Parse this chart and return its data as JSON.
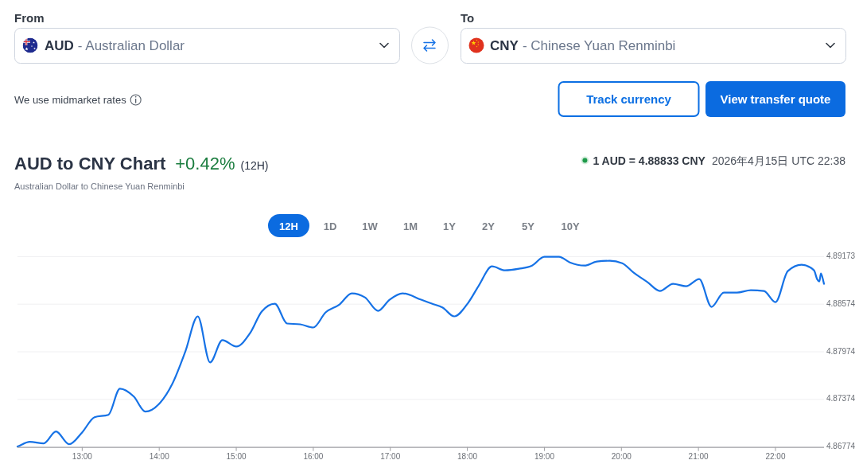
{
  "chart_data": [
    {
      "type": "other",
      "annotations": [
        "From",
        "AUD",
        "- Australian Dollar",
        "To",
        "CNY",
        "- Chinese Yuan Renminbi",
        "We use midmarket rates",
        "Track currency",
        "View transfer quote"
      ]
    },
    {
      "type": "line",
      "title": "AUD to CNY Chart",
      "subtitle": "Australian Dollar to Chinese Yuan Renminbi",
      "annotations": [
        "+0.42%",
        "(12H)",
        "1 AUD = 4.88833 CNY",
        "2026年4月15日 UTC 22:38",
        "12H",
        "1D",
        "1W",
        "1M",
        "1Y",
        "2Y",
        "5Y",
        "10Y"
      ],
      "x": [
        12.16,
        12.32,
        12.5,
        12.66,
        12.83,
        13.0,
        13.16,
        13.34,
        13.49,
        13.67,
        13.82,
        14.01,
        14.17,
        14.34,
        14.5,
        14.66,
        14.82,
        15.0,
        15.18,
        15.33,
        15.5,
        15.66,
        15.83,
        16.0,
        16.16,
        16.34,
        16.5,
        16.67,
        16.84,
        16.99,
        17.16,
        17.4,
        17.54,
        17.68,
        17.83,
        18.01,
        18.15,
        18.32,
        18.49,
        18.67,
        18.84,
        19.0,
        19.19,
        19.33,
        19.52,
        19.68,
        19.85,
        20.01,
        20.16,
        20.34,
        20.5,
        20.67,
        20.84,
        21.01,
        21.17,
        21.33,
        21.5,
        21.68,
        21.85,
        22.0,
        22.16,
        22.34,
        22.5,
        22.54,
        22.57,
        22.59,
        22.63
      ],
      "series": [
        {
          "color": "#1672e6",
          "values": [
            4.8678,
            4.8684,
            4.8682,
            4.8697,
            4.8681,
            4.8696,
            4.8715,
            4.8718,
            4.8751,
            4.8741,
            4.8722,
            4.8733,
            4.8757,
            4.8798,
            4.8842,
            4.8784,
            4.8812,
            4.8804,
            4.8821,
            4.8848,
            4.8858,
            4.8833,
            4.8832,
            4.8828,
            4.8847,
            4.8857,
            4.8871,
            4.8866,
            4.8849,
            4.8863,
            4.8871,
            4.8863,
            4.8858,
            4.8853,
            4.8842,
            4.8859,
            4.8881,
            4.8905,
            4.89,
            4.8902,
            4.8906,
            4.8917,
            4.8917,
            4.891,
            4.8906,
            4.8911,
            4.8912,
            4.8909,
            4.8897,
            4.8885,
            4.8874,
            4.8883,
            4.888,
            4.8889,
            4.8854,
            4.8872,
            4.8872,
            4.8875,
            4.8874,
            4.886,
            4.8899,
            4.8907,
            4.89,
            4.8889,
            4.8886,
            4.8896,
            4.8883
          ]
        }
      ],
      "xlim": [
        12.16,
        22.63
      ],
      "xticks": [
        {
          "value": 13,
          "label": "13:00"
        },
        {
          "value": 14,
          "label": "14:00"
        },
        {
          "value": 15,
          "label": "15:00"
        },
        {
          "value": 16,
          "label": "16:00"
        },
        {
          "value": 17,
          "label": "17:00"
        },
        {
          "value": 18,
          "label": "18:00"
        },
        {
          "value": 19,
          "label": "19:00"
        },
        {
          "value": 20,
          "label": "20:00"
        },
        {
          "value": 21,
          "label": "21:00"
        },
        {
          "value": 22,
          "label": "22:00"
        }
      ],
      "ylim": [
        4.86774,
        4.89173
      ],
      "yticks": [
        4.86774,
        4.87374,
        4.87974,
        4.88574,
        4.89173
      ],
      "grid": "y"
    }
  ]
}
